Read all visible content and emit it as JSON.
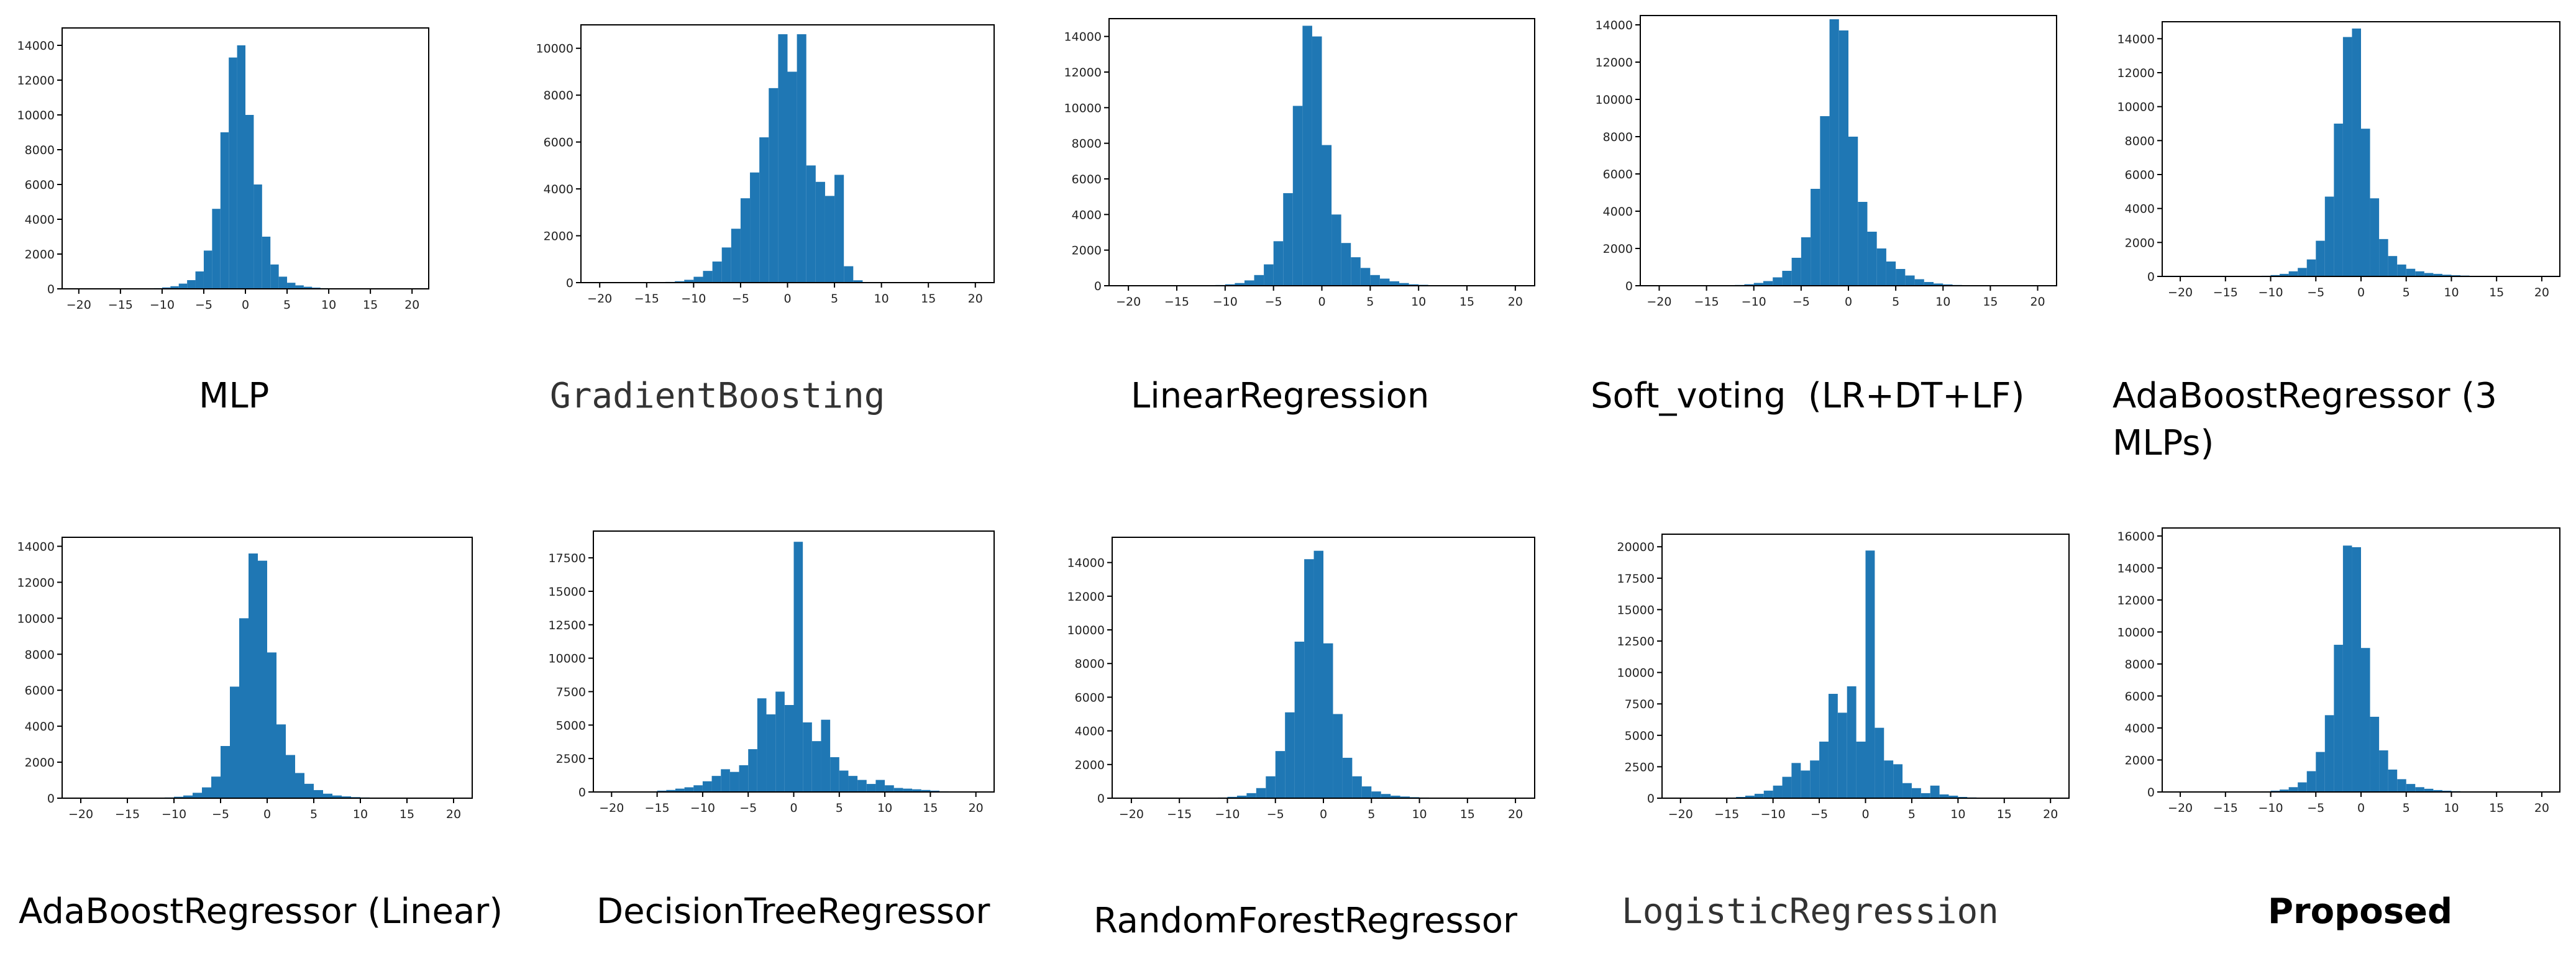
{
  "colors": {
    "bar": "#1f77b4",
    "axis": "#000000"
  },
  "chart_data": [
    {
      "type": "bar",
      "title": "",
      "xlabel": "",
      "ylabel": "",
      "grid": false,
      "xlim": [
        -22,
        22
      ],
      "ylim": [
        0,
        15000
      ],
      "xticks": [
        -20,
        -15,
        -10,
        -5,
        0,
        5,
        10,
        15,
        20
      ],
      "yticks": [
        0,
        2000,
        4000,
        6000,
        8000,
        10000,
        12000,
        14000
      ],
      "bin_edges": [
        -12,
        -11,
        -10,
        -9,
        -8,
        -7,
        -6,
        -5,
        -4,
        -3,
        -2,
        -1,
        0,
        1,
        2,
        3,
        4,
        5,
        6,
        7,
        8,
        9,
        10,
        11,
        12,
        13,
        14,
        15
      ],
      "values": [
        20,
        40,
        80,
        150,
        300,
        500,
        1000,
        2200,
        4600,
        9000,
        13300,
        14000,
        10000,
        6000,
        3000,
        1400,
        700,
        350,
        200,
        120,
        70,
        40,
        25,
        15,
        10,
        5,
        3
      ]
    },
    {
      "type": "bar",
      "title": "",
      "xlabel": "",
      "ylabel": "",
      "grid": false,
      "xlim": [
        -22,
        22
      ],
      "ylim": [
        0,
        11000
      ],
      "xticks": [
        -20,
        -15,
        -10,
        -5,
        0,
        5,
        10,
        15,
        20
      ],
      "yticks": [
        0,
        2000,
        4000,
        6000,
        8000,
        10000
      ],
      "bin_edges": [
        -13,
        -12,
        -11,
        -10,
        -9,
        -8,
        -7,
        -6,
        -5,
        -4,
        -3,
        -2,
        -1,
        0,
        1,
        2,
        3,
        4,
        5,
        6,
        7,
        8
      ],
      "values": [
        30,
        60,
        120,
        250,
        500,
        900,
        1500,
        2300,
        3600,
        4700,
        6200,
        8300,
        10600,
        9000,
        10600,
        5000,
        4300,
        3700,
        4600,
        700,
        100
      ]
    },
    {
      "type": "bar",
      "title": "",
      "xlabel": "",
      "ylabel": "",
      "grid": false,
      "xlim": [
        -22,
        22
      ],
      "ylim": [
        0,
        15000
      ],
      "xticks": [
        -20,
        -15,
        -10,
        -5,
        0,
        5,
        10,
        15,
        20
      ],
      "yticks": [
        0,
        2000,
        4000,
        6000,
        8000,
        10000,
        12000,
        14000
      ],
      "bin_edges": [
        -12,
        -11,
        -10,
        -9,
        -8,
        -7,
        -6,
        -5,
        -4,
        -3,
        -2,
        -1,
        0,
        1,
        2,
        3,
        4,
        5,
        6,
        7,
        8,
        9,
        10,
        11,
        12,
        13,
        14,
        15,
        16
      ],
      "values": [
        20,
        40,
        80,
        150,
        300,
        600,
        1200,
        2500,
        5200,
        10100,
        14600,
        14000,
        7900,
        4000,
        2400,
        1600,
        1000,
        600,
        400,
        250,
        150,
        80,
        50,
        30,
        20,
        10,
        5,
        3
      ]
    },
    {
      "type": "bar",
      "title": "",
      "xlabel": "",
      "ylabel": "",
      "grid": false,
      "xlim": [
        -22,
        22
      ],
      "ylim": [
        0,
        14500
      ],
      "xticks": [
        -20,
        -15,
        -10,
        -5,
        0,
        5,
        10,
        15,
        20
      ],
      "yticks": [
        0,
        2000,
        4000,
        6000,
        8000,
        10000,
        12000,
        14000
      ],
      "bin_edges": [
        -13,
        -12,
        -11,
        -10,
        -9,
        -8,
        -7,
        -6,
        -5,
        -4,
        -3,
        -2,
        -1,
        0,
        1,
        2,
        3,
        4,
        5,
        6,
        7,
        8,
        9,
        10,
        11,
        12,
        13,
        14,
        15,
        16
      ],
      "values": [
        20,
        40,
        80,
        150,
        250,
        450,
        800,
        1500,
        2600,
        5200,
        9100,
        14300,
        13700,
        8000,
        4500,
        2900,
        2000,
        1300,
        900,
        550,
        350,
        200,
        120,
        70,
        40,
        25,
        15,
        10,
        5
      ]
    },
    {
      "type": "bar",
      "title": "",
      "xlabel": "",
      "ylabel": "",
      "grid": false,
      "xlim": [
        -22,
        22
      ],
      "ylim": [
        0,
        15000
      ],
      "xticks": [
        -20,
        -15,
        -10,
        -5,
        0,
        5,
        10,
        15,
        20
      ],
      "yticks": [
        0,
        2000,
        4000,
        6000,
        8000,
        10000,
        12000,
        14000
      ],
      "bin_edges": [
        -12,
        -11,
        -10,
        -9,
        -8,
        -7,
        -6,
        -5,
        -4,
        -3,
        -2,
        -1,
        0,
        1,
        2,
        3,
        4,
        5,
        6,
        7,
        8,
        9,
        10,
        11,
        12,
        13,
        14,
        15,
        16
      ],
      "values": [
        20,
        40,
        80,
        150,
        300,
        500,
        1000,
        2100,
        4700,
        9000,
        14100,
        14600,
        8700,
        4600,
        2200,
        1200,
        700,
        450,
        300,
        200,
        150,
        100,
        70,
        50,
        30,
        20,
        10,
        5
      ]
    },
    {
      "type": "bar",
      "title": "",
      "xlabel": "",
      "ylabel": "",
      "grid": false,
      "xlim": [
        -22,
        22
      ],
      "ylim": [
        0,
        14500
      ],
      "xticks": [
        -20,
        -15,
        -10,
        -5,
        0,
        5,
        10,
        15,
        20
      ],
      "yticks": [
        0,
        2000,
        4000,
        6000,
        8000,
        10000,
        12000,
        14000
      ],
      "bin_edges": [
        -12,
        -11,
        -10,
        -9,
        -8,
        -7,
        -6,
        -5,
        -4,
        -3,
        -2,
        -1,
        0,
        1,
        2,
        3,
        4,
        5,
        6,
        7,
        8,
        9,
        10,
        11,
        12,
        13,
        14,
        15
      ],
      "values": [
        20,
        40,
        80,
        150,
        300,
        600,
        1200,
        2900,
        6200,
        10000,
        13600,
        13200,
        8100,
        4100,
        2400,
        1400,
        800,
        450,
        250,
        150,
        100,
        60,
        40,
        25,
        15,
        10,
        5
      ]
    },
    {
      "type": "bar",
      "title": "",
      "xlabel": "",
      "ylabel": "",
      "grid": false,
      "xlim": [
        -22,
        22
      ],
      "ylim": [
        0,
        19500
      ],
      "xticks": [
        -20,
        -15,
        -10,
        -5,
        0,
        5,
        10,
        15,
        20
      ],
      "yticks": [
        0,
        2500,
        5000,
        7500,
        10000,
        12500,
        15000,
        17500
      ],
      "bin_edges": [
        -15,
        -14,
        -13,
        -12,
        -11,
        -10,
        -9,
        -8,
        -7,
        -6,
        -5,
        -4,
        -3,
        -2,
        -1,
        0,
        1,
        2,
        3,
        4,
        5,
        6,
        7,
        8,
        9,
        10,
        11,
        12,
        13,
        14,
        15,
        16,
        17,
        18
      ],
      "values": [
        100,
        150,
        250,
        350,
        500,
        800,
        1200,
        1700,
        1500,
        2000,
        3200,
        7000,
        5800,
        7500,
        6500,
        18700,
        5200,
        3800,
        5400,
        2600,
        1600,
        1200,
        900,
        600,
        900,
        500,
        300,
        250,
        200,
        150,
        100,
        50,
        30
      ]
    },
    {
      "type": "bar",
      "title": "",
      "xlabel": "",
      "ylabel": "",
      "grid": false,
      "xlim": [
        -22,
        22
      ],
      "ylim": [
        0,
        15500
      ],
      "xticks": [
        -20,
        -15,
        -10,
        -5,
        0,
        5,
        10,
        15,
        20
      ],
      "yticks": [
        0,
        2000,
        4000,
        6000,
        8000,
        10000,
        12000,
        14000
      ],
      "bin_edges": [
        -12,
        -11,
        -10,
        -9,
        -8,
        -7,
        -6,
        -5,
        -4,
        -3,
        -2,
        -1,
        0,
        1,
        2,
        3,
        4,
        5,
        6,
        7,
        8,
        9,
        10,
        11,
        12,
        13,
        14,
        15,
        16
      ],
      "values": [
        20,
        40,
        80,
        150,
        300,
        600,
        1300,
        2800,
        5100,
        9300,
        14200,
        14700,
        9200,
        5000,
        2400,
        1300,
        700,
        400,
        250,
        150,
        100,
        60,
        40,
        25,
        15,
        10,
        5,
        3
      ]
    },
    {
      "type": "bar",
      "title": "",
      "xlabel": "",
      "ylabel": "",
      "grid": false,
      "xlim": [
        -22,
        22
      ],
      "ylim": [
        0,
        21000
      ],
      "xticks": [
        -20,
        -15,
        -10,
        -5,
        0,
        5,
        10,
        15,
        20
      ],
      "yticks": [
        0,
        2500,
        5000,
        7500,
        10000,
        12500,
        15000,
        17500,
        20000
      ],
      "bin_edges": [
        -15,
        -14,
        -13,
        -12,
        -11,
        -10,
        -9,
        -8,
        -7,
        -6,
        -5,
        -4,
        -3,
        -2,
        -1,
        0,
        1,
        2,
        3,
        4,
        5,
        6,
        7,
        8,
        9,
        10,
        11,
        12,
        13,
        14,
        15
      ],
      "values": [
        50,
        100,
        200,
        350,
        600,
        1000,
        1700,
        2800,
        2200,
        3000,
        4500,
        8300,
        6800,
        8900,
        4500,
        19700,
        5600,
        3000,
        2700,
        1200,
        800,
        400,
        1000,
        300,
        200,
        100,
        60,
        40,
        20,
        10
      ]
    },
    {
      "type": "bar",
      "title": "",
      "xlabel": "",
      "ylabel": "",
      "grid": false,
      "xlim": [
        -22,
        22
      ],
      "ylim": [
        0,
        16500
      ],
      "xticks": [
        -20,
        -15,
        -10,
        -5,
        0,
        5,
        10,
        15,
        20
      ],
      "yticks": [
        0,
        2000,
        4000,
        6000,
        8000,
        10000,
        12000,
        14000,
        16000
      ],
      "bin_edges": [
        -12,
        -11,
        -10,
        -9,
        -8,
        -7,
        -6,
        -5,
        -4,
        -3,
        -2,
        -1,
        0,
        1,
        2,
        3,
        4,
        5,
        6,
        7,
        8,
        9,
        10,
        11,
        12,
        13,
        14,
        15,
        16
      ],
      "values": [
        20,
        40,
        80,
        150,
        300,
        600,
        1300,
        2500,
        4800,
        9200,
        15400,
        15300,
        9000,
        4700,
        2600,
        1400,
        800,
        500,
        300,
        200,
        120,
        80,
        50,
        30,
        20,
        10,
        5,
        3
      ]
    }
  ],
  "captions": [
    "MLP",
    "GradientBoosting",
    "LinearRegression",
    "Soft_voting  (LR+DT+LF)",
    "AdaBoostRegressor (3 MLPs)",
    "AdaBoostRegressor (Linear)",
    "DecisionTreeRegressor",
    "RandomForestRegressor",
    "LogisticRegression",
    "Proposed"
  ]
}
